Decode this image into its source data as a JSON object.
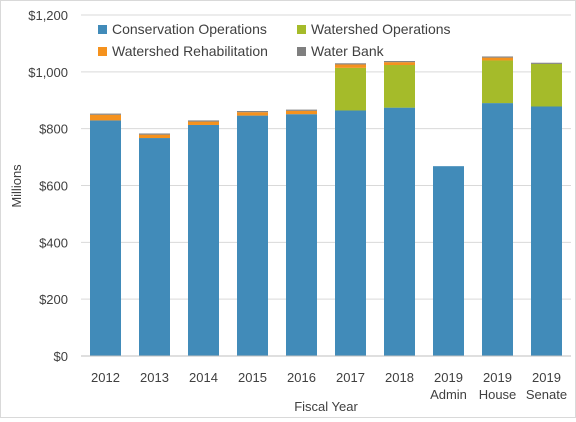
{
  "chart_data": {
    "type": "bar",
    "stacked": true,
    "xlabel": "Fiscal Year",
    "ylabel": "Millions",
    "ylim": [
      0,
      1200
    ],
    "yticks": [
      0,
      200,
      400,
      600,
      800,
      1000,
      1200
    ],
    "ytick_labels": [
      "$0",
      "$200",
      "$400",
      "$600",
      "$800",
      "$1,000",
      "$1,200"
    ],
    "categories": [
      [
        "2012"
      ],
      [
        "2013"
      ],
      [
        "2014"
      ],
      [
        "2015"
      ],
      [
        "2016"
      ],
      [
        "2017"
      ],
      [
        "2018"
      ],
      [
        "2019",
        "Admin"
      ],
      [
        "2019",
        "House"
      ],
      [
        "2019",
        "Senate"
      ]
    ],
    "grid": "horizontal",
    "legend_position": "top-left",
    "series": [
      {
        "name": "Conservation Operations",
        "color": "#418BB9",
        "values": [
          829,
          767,
          813,
          846,
          851,
          864,
          874,
          668,
          890,
          878
        ]
      },
      {
        "name": "Watershed Operations",
        "color": "#A5BB2A",
        "values": [
          0,
          0,
          0,
          0,
          0,
          150,
          150,
          0,
          150,
          150
        ]
      },
      {
        "name": "Watershed Rehabilitation",
        "color": "#F5921E",
        "values": [
          20,
          12,
          12,
          12,
          12,
          12,
          10,
          0,
          10,
          0
        ]
      },
      {
        "name": "Water Bank",
        "color": "#7F7F7F",
        "values": [
          4,
          4,
          4,
          4,
          4,
          4,
          4,
          0,
          4,
          4
        ]
      }
    ]
  }
}
